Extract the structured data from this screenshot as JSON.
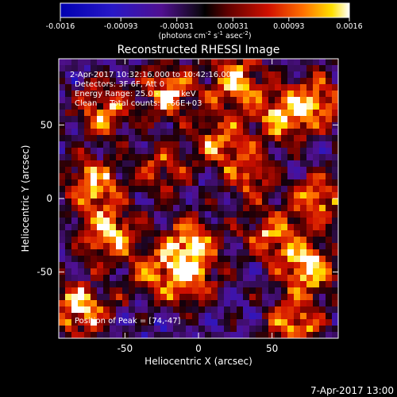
{
  "chart_data": {
    "type": "heatmap",
    "title": "Reconstructed RHESSI Image",
    "xlabel": "Heliocentric X (arcsec)",
    "ylabel": "Heliocentric Y (arcsec)",
    "xlim": [
      -95,
      95
    ],
    "ylim": [
      -95,
      95
    ],
    "xticks": [
      -50,
      0,
      50
    ],
    "yticks": [
      50,
      0,
      -50
    ],
    "colorbar": {
      "range": [
        -0.0016,
        0.0016
      ],
      "tick_labels": [
        "-0.0016",
        "-0.00093",
        "-0.00031",
        "0.00031",
        "0.00093",
        "0.0016"
      ],
      "unit_label": "(photons cm",
      "unit_sup1": "-2",
      "unit_mid": " s",
      "unit_sup2": "-1",
      "unit_mid2": " asec",
      "unit_sup3": "-2",
      "unit_end": ")",
      "colormap": "dark-blue → purple → black → red → orange → yellow → white"
    },
    "annotations": [
      "2-Apr-2017 10:32:16.000 to 10:42:16.000",
      "Detectors: 3F 6F, Att 0",
      "Energy Range: 25.0 - 50.0 keV",
      "Clean     Total counts: 5.66E+03"
    ],
    "peak_label": "Position of Peak = [74,-47]",
    "peak_position": [
      74,
      -47
    ],
    "bright_sources": [
      {
        "x": -80,
        "y": -75,
        "intensity": 1.0
      },
      {
        "x": -72,
        "y": 10,
        "intensity": 0.9
      },
      {
        "x": -62,
        "y": -25,
        "intensity": 0.95
      },
      {
        "x": -65,
        "y": 60,
        "intensity": 0.8
      },
      {
        "x": -20,
        "y": 72,
        "intensity": 0.85
      },
      {
        "x": 25,
        "y": 80,
        "intensity": 0.9
      },
      {
        "x": 55,
        "y": 55,
        "intensity": 0.8
      },
      {
        "x": 80,
        "y": 65,
        "intensity": 0.85
      },
      {
        "x": 82,
        "y": 0,
        "intensity": 0.75
      },
      {
        "x": 74,
        "y": -47,
        "intensity": 1.0
      },
      {
        "x": -5,
        "y": -30,
        "intensity": 0.9
      },
      {
        "x": -5,
        "y": -55,
        "intensity": 0.75
      },
      {
        "x": 35,
        "y": 15,
        "intensity": 0.6
      },
      {
        "x": 15,
        "y": 40,
        "intensity": 0.7
      },
      {
        "x": 50,
        "y": -25,
        "intensity": 0.7
      },
      {
        "x": -30,
        "y": -50,
        "intensity": 0.6
      },
      {
        "x": 65,
        "y": -85,
        "intensity": 0.85
      },
      {
        "x": -25,
        "y": 20,
        "intensity": 0.6
      }
    ]
  },
  "footer": {
    "timestamp": "7-Apr-2017 13:00"
  }
}
